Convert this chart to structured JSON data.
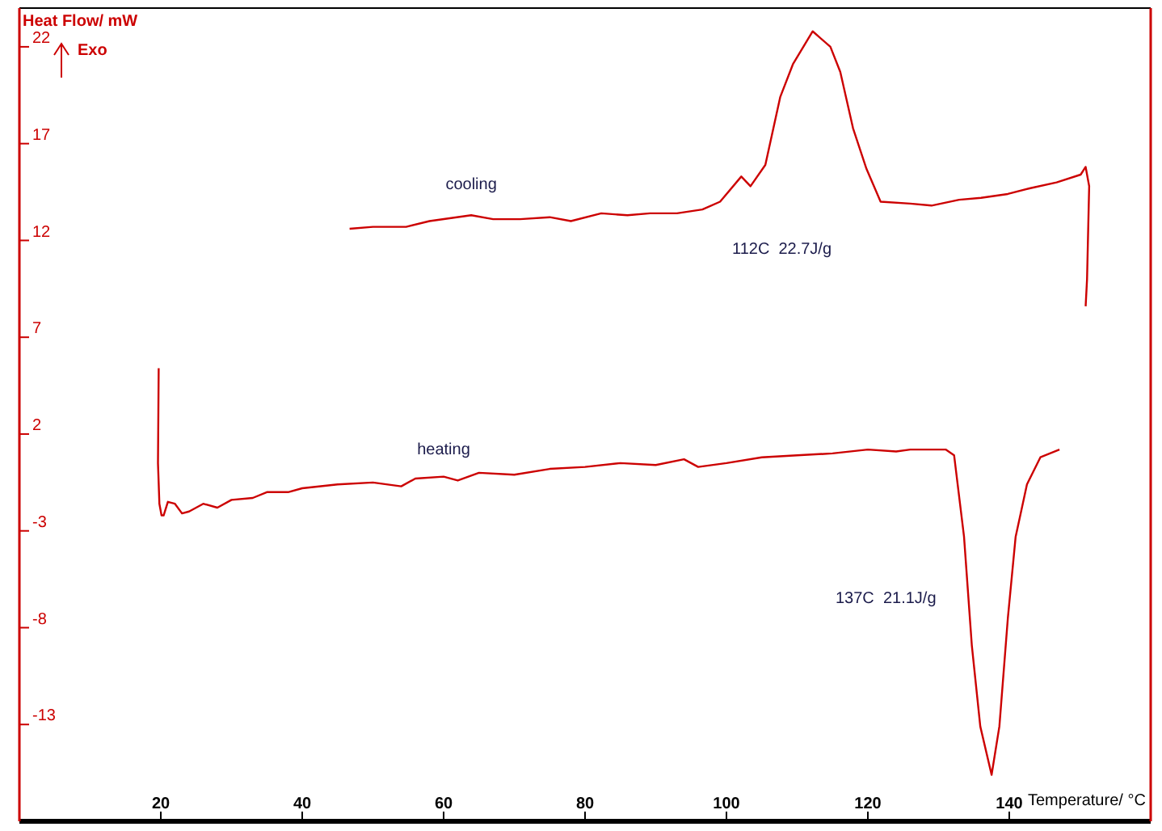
{
  "chart_data": {
    "type": "line",
    "xlabel": "Temperature/ °C",
    "ylabel": "Heat Flow/ mW",
    "xlim": [
      0,
      160
    ],
    "ylim": [
      -18,
      24
    ],
    "xticks": [
      20,
      40,
      60,
      80,
      100,
      120,
      140
    ],
    "yticks": [
      -13,
      -8,
      -3,
      2,
      7,
      12,
      17,
      22
    ],
    "grid": false,
    "annotations": [
      "Exo",
      "112C  22.7J/g",
      "137C  21.1J/g"
    ],
    "series": [
      {
        "name": "cooling",
        "color": "#cc0000",
        "x": [
          46.7,
          50,
          54.7,
          58,
          63.9,
          67,
          70.8,
          75,
          78,
          82.3,
          86,
          89.2,
          93,
          96.6,
          99.1,
          102.1,
          103.4,
          105.5,
          107.6,
          109.4,
          112.2,
          114.7,
          116.1,
          117.9,
          119.8,
          121.8,
          126,
          129,
          132.9,
          136,
          139.8,
          143,
          146.7,
          150.1,
          150.8,
          151.3,
          151,
          150.8
        ],
        "values": [
          12.6,
          12.7,
          12.7,
          13.0,
          13.3,
          13.1,
          13.1,
          13.2,
          13.0,
          13.4,
          13.3,
          13.4,
          13.4,
          13.6,
          14.0,
          15.3,
          14.8,
          15.9,
          19.4,
          21.1,
          22.8,
          22.0,
          20.7,
          17.8,
          15.7,
          14.0,
          13.9,
          13.8,
          14.1,
          14.2,
          14.4,
          14.7,
          15.0,
          15.4,
          15.8,
          14.8,
          10.0,
          8.6
        ]
      },
      {
        "name": "heating",
        "color": "#cc0000",
        "x": [
          19.7,
          19.6,
          19.8,
          20.1,
          20.4,
          21,
          22,
          23,
          24,
          26,
          28,
          30,
          33,
          35,
          38,
          40,
          45,
          50,
          54,
          56,
          60,
          62,
          65,
          70,
          75,
          80,
          85,
          90,
          94,
          96,
          100,
          105,
          110,
          115,
          120,
          124,
          126,
          131,
          132.2,
          133.6,
          134.7,
          135.9,
          137.5,
          138.6,
          139.8,
          140.9,
          142.5,
          144.4,
          147.1
        ],
        "values": [
          5.4,
          0.5,
          -1.6,
          -2.2,
          -2.2,
          -1.5,
          -1.6,
          -2.1,
          -2.0,
          -1.6,
          -1.8,
          -1.4,
          -1.3,
          -1.0,
          -1.0,
          -0.8,
          -0.6,
          -0.5,
          -0.7,
          -0.3,
          -0.2,
          -0.4,
          0.0,
          -0.1,
          0.2,
          0.3,
          0.5,
          0.4,
          0.7,
          0.3,
          0.5,
          0.8,
          0.9,
          1.0,
          1.2,
          1.1,
          1.2,
          1.2,
          0.9,
          -3.3,
          -8.9,
          -13.1,
          -15.6,
          -13.1,
          -7.5,
          -3.3,
          -0.6,
          0.8,
          1.2
        ]
      }
    ]
  }
}
